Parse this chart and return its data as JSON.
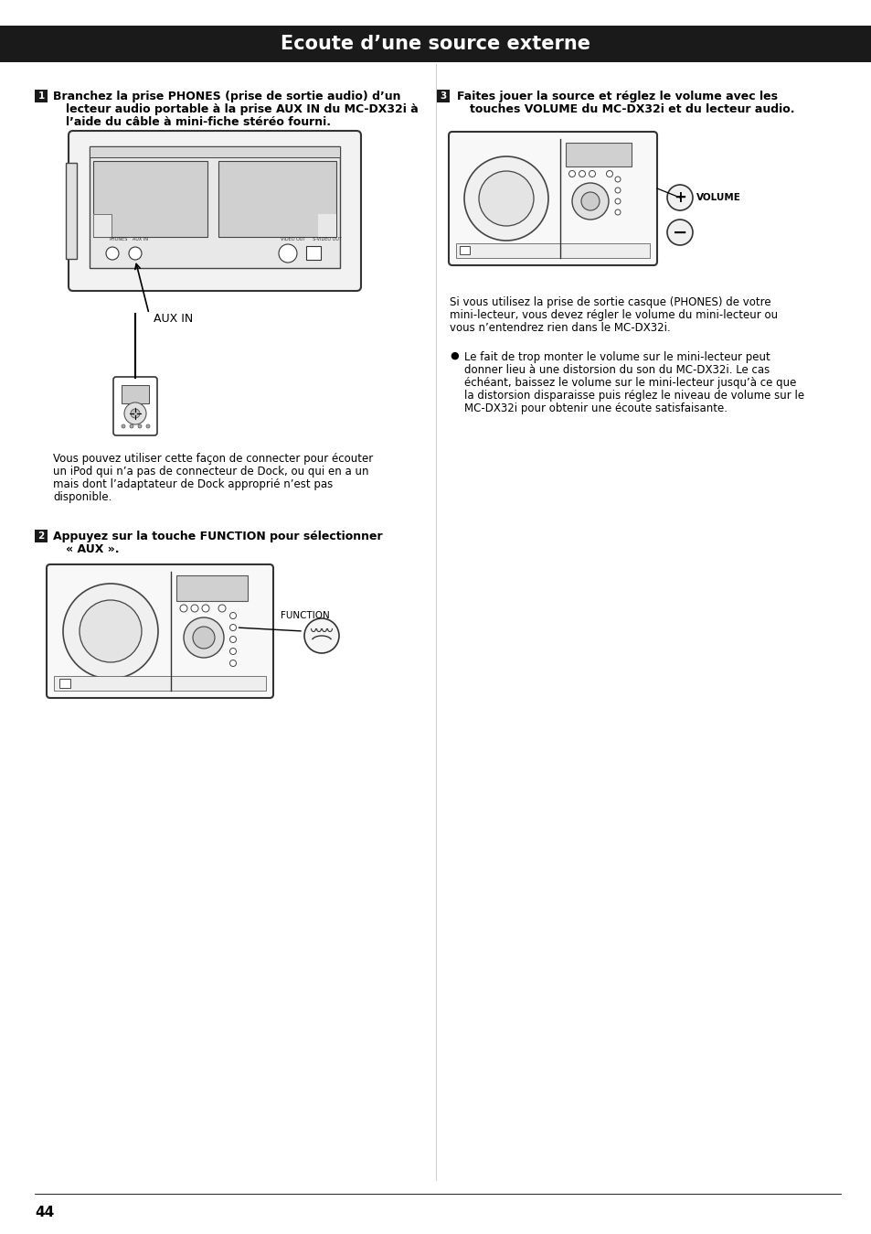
{
  "title": "Ecoute d’une source externe",
  "title_bg": "#1a1a1a",
  "title_color": "#ffffff",
  "title_fontsize": 15,
  "page_bg": "#ffffff",
  "page_number": "44",
  "step1_line1": "Branchez la prise PHONES (prise de sortie audio) d’un",
  "step1_line2": "lecteur audio portable à la prise AUX IN du MC-DX32i à",
  "step1_line3": "l’aide du câble à mini-fiche stéréo fourni.",
  "step1_note_lines": [
    "Vous pouvez utiliser cette façon de connecter pour écouter",
    "un iPod qui n’a pas de connecteur de Dock, ou qui en a un",
    "mais dont l’adaptateur de Dock approprié n’est pas",
    "disponible."
  ],
  "step2_line1": "Appuyez sur la touche FUNCTION pour sélectionner",
  "step2_line2": "« AUX ».",
  "step3_line1": "Faites jouer la source et réglez le volume avec les",
  "step3_line2": "touches VOLUME du MC-DX32i et du lecteur audio.",
  "step3_note_lines": [
    "Si vous utilisez la prise de sortie casque (PHONES) de votre",
    "mini-lecteur, vous devez régler le volume du mini-lecteur ou",
    "vous n’entendrez rien dans le MC-DX32i."
  ],
  "bullet_lines": [
    "Le fait de trop monter le volume sur le mini-lecteur peut",
    "donner lieu à une distorsion du son du MC-DX32i. Le cas",
    "échéant, baissez le volume sur le mini-lecteur jusqu’à ce que",
    "la distorsion disparaisse puis réglez le niveau de volume sur le",
    "MC-DX32i pour obtenir une écoute satisfaisante."
  ],
  "aux_in_label": "AUX IN",
  "function_label": "FUNCTION",
  "volume_label": "VOLUME"
}
